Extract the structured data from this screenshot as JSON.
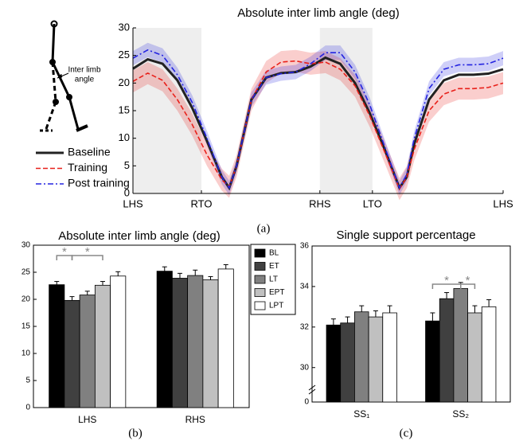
{
  "chart_data": [
    {
      "type": "line",
      "title": "Absolute inter limb angle (deg)",
      "panel": "(a)",
      "annotation": [
        "Inter limb",
        "angle"
      ],
      "x": [
        0,
        4,
        8,
        12,
        16,
        20,
        24,
        26,
        28,
        32,
        36,
        40,
        44,
        48,
        52,
        56,
        60,
        64,
        68,
        72,
        74,
        76,
        80,
        84,
        88,
        92,
        96,
        100
      ],
      "xlim": [
        0,
        100
      ],
      "xticks": [
        {
          "value": 0,
          "label": "LHS"
        },
        {
          "value": 18.5,
          "label": "RTO"
        },
        {
          "value": 50.5,
          "label": "RHS"
        },
        {
          "value": 64.7,
          "label": "LTO"
        },
        {
          "value": 100,
          "label": "LHS"
        }
      ],
      "shaded_spans": [
        [
          0,
          18.5
        ],
        [
          50.5,
          64.7
        ]
      ],
      "ylim": [
        0,
        30
      ],
      "yticks": [
        0,
        5,
        10,
        15,
        20,
        25,
        30
      ],
      "series": [
        {
          "name": "Baseline",
          "color": "#222222",
          "style": "solid",
          "spread": 0,
          "values": [
            22.6,
            24.3,
            23.5,
            20.5,
            15.5,
            9.5,
            3,
            1,
            5,
            17,
            21,
            21.8,
            22,
            23,
            24.6,
            23.5,
            20,
            14.5,
            8,
            1,
            3,
            9,
            17,
            20.5,
            21.5,
            21.5,
            21.7,
            22.5
          ]
        },
        {
          "name": "Training",
          "color": "#e8201a",
          "style": "dashed",
          "spread": 2,
          "values": [
            20.3,
            21.8,
            20.5,
            17,
            12.5,
            7,
            2.5,
            1.2,
            5,
            17,
            22,
            23.8,
            24,
            23.5,
            23.8,
            22.5,
            19.5,
            14,
            7.5,
            0.8,
            3,
            8,
            15,
            18,
            19,
            19,
            19.2,
            20
          ]
        },
        {
          "name": "Post training",
          "color": "#2323e0",
          "style": "dashdot",
          "spread": 1.3,
          "values": [
            24.5,
            26,
            25,
            21.5,
            16.5,
            10,
            3,
            1,
            5,
            17,
            21,
            21.7,
            22,
            23.5,
            25.5,
            25.5,
            22,
            16,
            8.5,
            1,
            3.5,
            10,
            19,
            22.5,
            23.3,
            23.3,
            23.5,
            24.5
          ]
        }
      ]
    },
    {
      "type": "bar",
      "title": "Absolute inter limb angle (deg)",
      "panel": "(b)",
      "categories": [
        "LHS",
        "RHS"
      ],
      "ylim": [
        0,
        30
      ],
      "yticks": [
        0,
        5,
        10,
        15,
        20,
        25,
        30
      ],
      "significance": [
        "*",
        "*"
      ],
      "series": [
        {
          "name": "BL",
          "color": "#000000",
          "values": [
            22.7,
            25.2
          ],
          "errors": [
            0.6,
            0.8
          ]
        },
        {
          "name": "ET",
          "color": "#404040",
          "values": [
            19.8,
            23.9
          ],
          "errors": [
            0.7,
            0.9
          ]
        },
        {
          "name": "LT",
          "color": "#808080",
          "values": [
            20.8,
            24.4
          ],
          "errors": [
            0.7,
            1.0
          ]
        },
        {
          "name": "EPT",
          "color": "#c0c0c0",
          "values": [
            22.6,
            23.6
          ],
          "errors": [
            0.7,
            0.6
          ]
        },
        {
          "name": "LPT",
          "color": "#ffffff",
          "values": [
            24.3,
            25.6
          ],
          "errors": [
            0.8,
            0.8
          ]
        }
      ]
    },
    {
      "type": "bar",
      "title": "Single support percentage",
      "panel": "(c)",
      "categories": [
        "SS₁",
        "SS₂"
      ],
      "ylim": [
        28.3,
        36
      ],
      "yticks": [
        0,
        30,
        32,
        34,
        36
      ],
      "axis_break": true,
      "significance": [
        "*",
        "*"
      ],
      "series": [
        {
          "name": "BL",
          "color": "#000000",
          "values": [
            32.1,
            32.3
          ],
          "errors": [
            0.3,
            0.4
          ]
        },
        {
          "name": "ET",
          "color": "#404040",
          "values": [
            32.2,
            33.4
          ],
          "errors": [
            0.3,
            0.3
          ]
        },
        {
          "name": "LT",
          "color": "#808080",
          "values": [
            32.75,
            33.9
          ],
          "errors": [
            0.3,
            0.3
          ]
        },
        {
          "name": "EPT",
          "color": "#c0c0c0",
          "values": [
            32.5,
            32.7
          ],
          "errors": [
            0.3,
            0.35
          ]
        },
        {
          "name": "LPT",
          "color": "#ffffff",
          "values": [
            32.7,
            33.0
          ],
          "errors": [
            0.35,
            0.35
          ]
        }
      ]
    }
  ]
}
